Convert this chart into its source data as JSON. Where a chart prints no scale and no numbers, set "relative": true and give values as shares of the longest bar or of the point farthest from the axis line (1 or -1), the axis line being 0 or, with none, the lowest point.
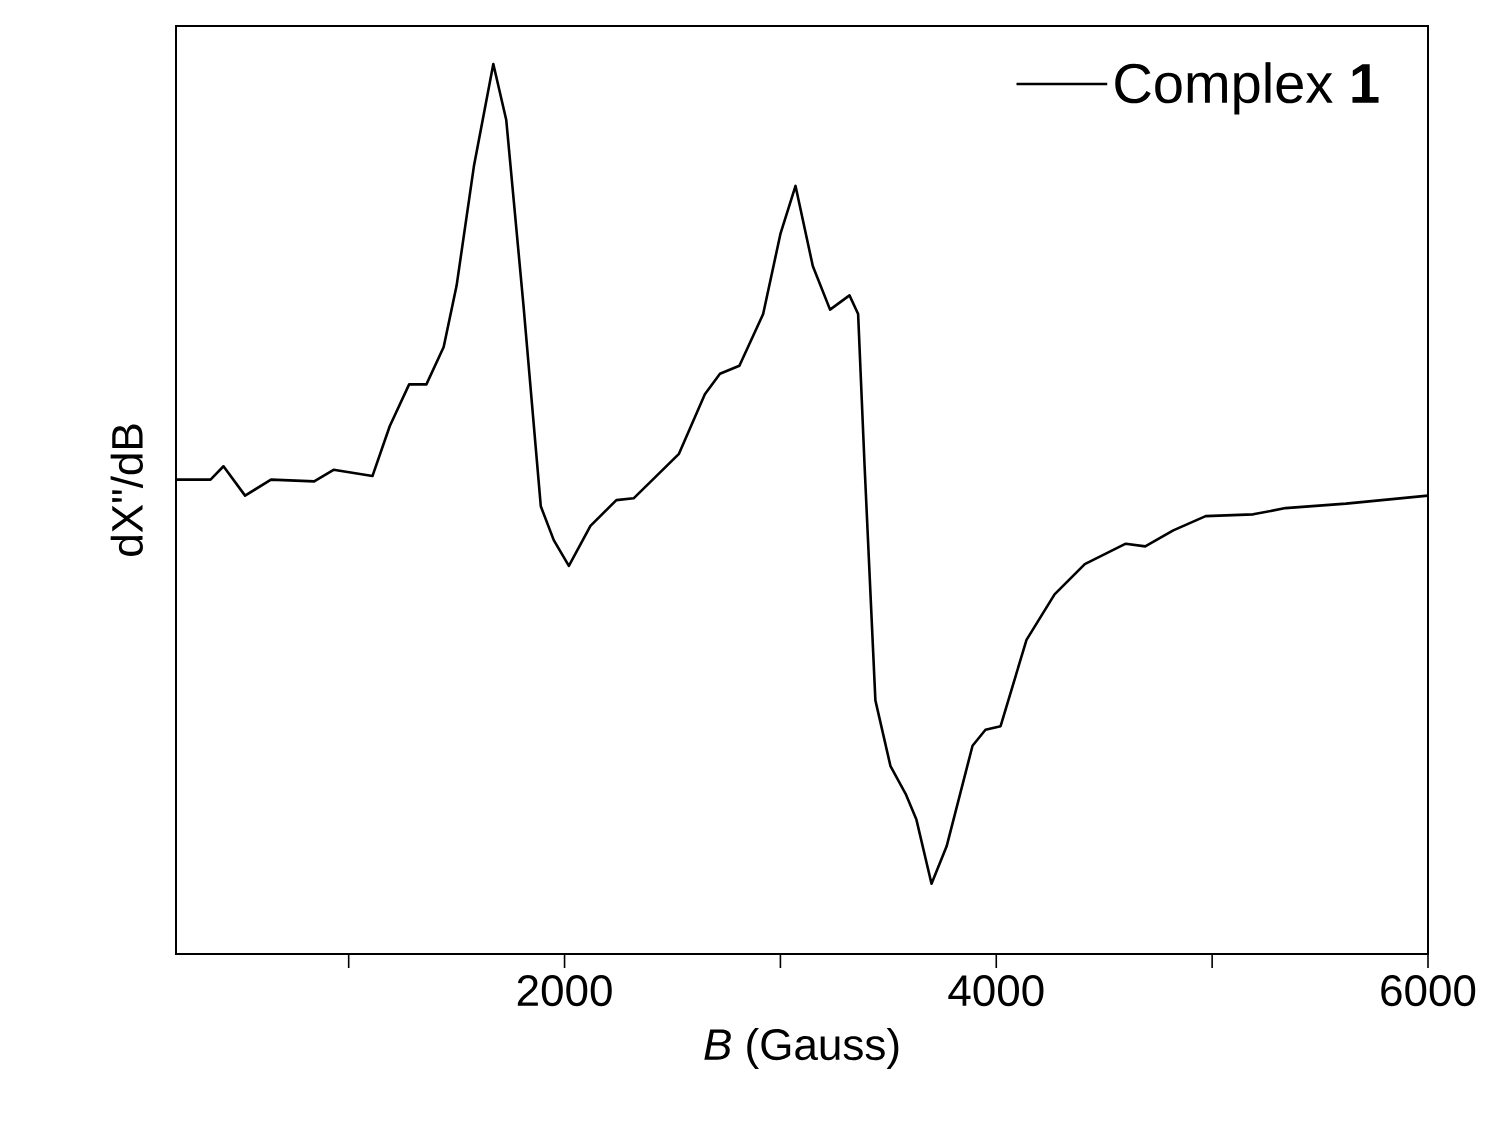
{
  "chart_data": {
    "type": "line",
    "xlabel": "*B* (Gauss)",
    "ylabel": "dX\"/dB",
    "relative": true,
    "legend": "top right",
    "xlim": [
      200,
      6000
    ],
    "xticks": [
      {
        "value": 1000,
        "label": null
      },
      2000,
      {
        "value": 3000,
        "label": null
      },
      4000,
      {
        "value": 5000,
        "label": null
      },
      6000
    ],
    "series": [
      {
        "name": "Complex **1**",
        "color": "#000000",
        "x": [
          200,
          360,
          420,
          520,
          640,
          840,
          930,
          1110,
          1190,
          1280,
          1360,
          1440,
          1500,
          1580,
          1670,
          1730,
          1810,
          1890,
          1950,
          2020,
          2120,
          2240,
          2320,
          2530,
          2650,
          2720,
          2810,
          2920,
          3000,
          3070,
          3150,
          3230,
          3320,
          3360,
          3390,
          3440,
          3510,
          3580,
          3630,
          3700,
          3770,
          3890,
          3950,
          4020,
          4140,
          4270,
          4410,
          4600,
          4690,
          4820,
          4970,
          5190,
          5340,
          5620,
          6000
        ],
        "values": [
          0.533,
          0.533,
          0.548,
          0.515,
          0.533,
          0.531,
          0.544,
          0.537,
          0.593,
          0.64,
          0.64,
          0.682,
          0.751,
          0.885,
          1,
          0.937,
          0.728,
          0.503,
          0.465,
          0.436,
          0.481,
          0.51,
          0.512,
          0.562,
          0.629,
          0.652,
          0.661,
          0.719,
          0.809,
          0.863,
          0.773,
          0.724,
          0.74,
          0.719,
          0.548,
          0.285,
          0.211,
          0.18,
          0.151,
          0.079,
          0.121,
          0.234,
          0.252,
          0.256,
          0.353,
          0.404,
          0.438,
          0.461,
          0.458,
          0.476,
          0.492,
          0.494,
          0.501,
          0.506,
          0.515
        ]
      }
    ]
  }
}
